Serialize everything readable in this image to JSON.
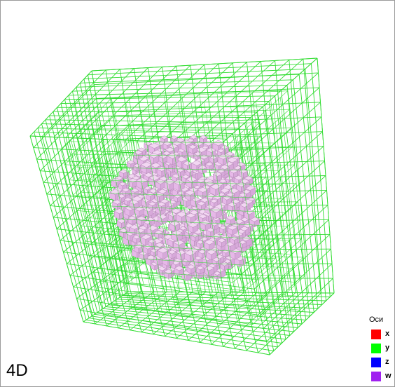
{
  "view": {
    "mode_label": "4D",
    "wire_color": "#33dd33",
    "cube_color": "#e6b8e8",
    "cube_edge_color": "#b48ab6"
  },
  "legend": {
    "title": "Оси",
    "items": [
      {
        "label": "x",
        "color": "#ff0000"
      },
      {
        "label": "y",
        "color": "#00ff00"
      },
      {
        "label": "z",
        "color": "#0000ff"
      },
      {
        "label": "w",
        "color": "#a020f0"
      }
    ]
  }
}
